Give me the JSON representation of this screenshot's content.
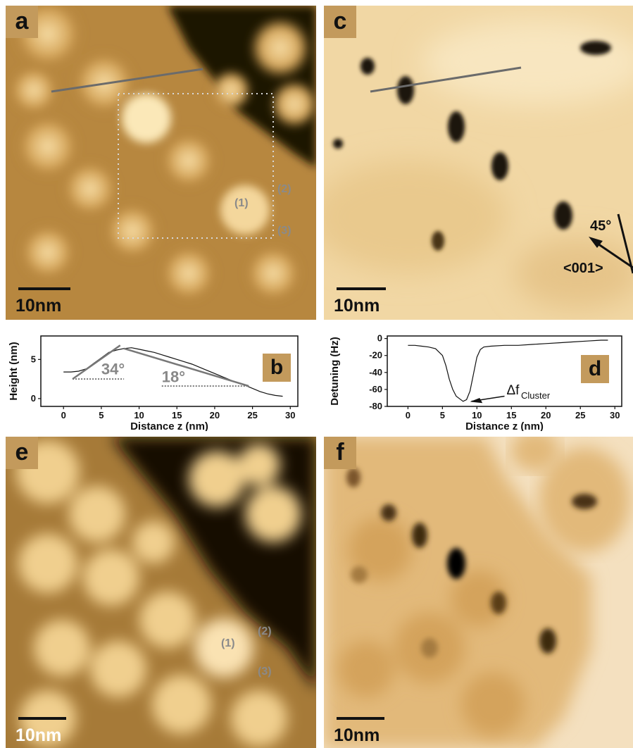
{
  "panels": {
    "a": {
      "letter": "a",
      "scale_label": "10nm",
      "markers": [
        "(1)",
        "(2)",
        "(3)"
      ]
    },
    "c": {
      "letter": "c",
      "scale_label": "10nm",
      "angle_label": "45°",
      "direction_label": "<001>"
    },
    "e": {
      "letter": "e",
      "scale_label": "10nm",
      "markers": [
        "(1)",
        "(2)",
        "(3)"
      ]
    },
    "f": {
      "letter": "f",
      "scale_label": "10nm"
    }
  },
  "chart_data": [
    {
      "type": "line",
      "panel": "b",
      "xlabel": "Distance z (nm)",
      "ylabel": "Height (nm)",
      "xlim": [
        -3,
        31
      ],
      "ylim": [
        -1,
        8
      ],
      "xticks": [
        0,
        5,
        10,
        15,
        20,
        25,
        30
      ],
      "yticks": [
        0,
        5
      ],
      "annotations": [
        "34°",
        "18°"
      ],
      "series": [
        {
          "x": [
            0,
            1,
            2,
            3,
            4,
            5,
            6,
            7,
            8,
            9,
            10,
            11,
            12,
            13,
            14,
            15,
            16,
            17,
            18,
            19,
            20,
            21,
            22,
            23,
            24,
            25,
            26,
            27,
            28,
            29
          ],
          "y": [
            3.4,
            3.4,
            3.5,
            3.8,
            4.5,
            5.2,
            5.9,
            6.2,
            6.4,
            6.5,
            6.3,
            6.1,
            5.9,
            5.6,
            5.3,
            5.0,
            4.7,
            4.4,
            4.0,
            3.6,
            3.2,
            2.8,
            2.4,
            2.0,
            1.7,
            1.3,
            0.9,
            0.6,
            0.4,
            0.3
          ]
        }
      ]
    },
    {
      "type": "line",
      "panel": "d",
      "xlabel": "Distance z (nm)",
      "ylabel": "Detuning (Hz)",
      "xlim": [
        -3,
        31
      ],
      "ylim": [
        -80,
        3
      ],
      "xticks": [
        0,
        5,
        10,
        15,
        20,
        25,
        30
      ],
      "yticks": [
        0,
        -20,
        -40,
        -60,
        -80
      ],
      "annotations": [
        "Δf",
        "Cluster"
      ],
      "series": [
        {
          "x": [
            0,
            1,
            2,
            3,
            4,
            5,
            5.5,
            6,
            6.5,
            7,
            7.5,
            8,
            8.5,
            9,
            9.5,
            10,
            10.5,
            11,
            12,
            14,
            16,
            18,
            20,
            22,
            24,
            26,
            28,
            29
          ],
          "y": [
            -8,
            -8,
            -9,
            -10,
            -12,
            -20,
            -32,
            -48,
            -60,
            -68,
            -71,
            -74,
            -72,
            -62,
            -42,
            -22,
            -13,
            -10,
            -9,
            -8,
            -8,
            -7,
            -6,
            -5,
            -4,
            -3,
            -2,
            -2
          ]
        }
      ]
    }
  ]
}
